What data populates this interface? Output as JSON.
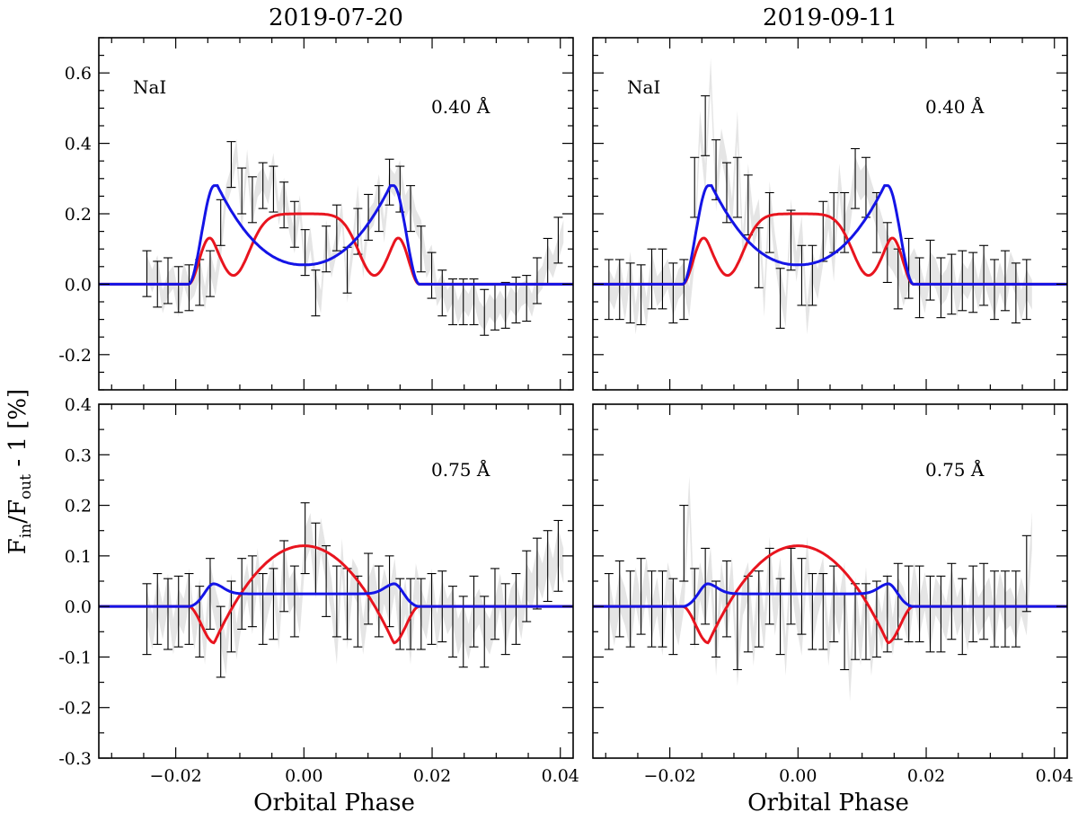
{
  "figure": {
    "ylabel_main": "F",
    "ylabel_sub_in": "in",
    "ylabel_mid": "/F",
    "ylabel_sub_out": "out",
    "ylabel_tail": " - 1 [%]",
    "xlabel": "Orbital Phase"
  },
  "chart_data": [
    {
      "type": "line",
      "panel": "top-left",
      "title": "2019-07-20",
      "annotations": [
        "NaI",
        "0.40 Å"
      ],
      "xlabel": "Orbital Phase",
      "ylabel": "Fin/Fout - 1 [%]",
      "xlim": [
        -0.032,
        0.042
      ],
      "ylim": [
        -0.3,
        0.7
      ],
      "xticks": [
        -0.02,
        0.0,
        0.02,
        0.04
      ],
      "xtick_labels": [
        "−0.02",
        "0.00",
        "0.02",
        "0.04"
      ],
      "yticks": [
        -0.2,
        0.0,
        0.2,
        0.4,
        0.6
      ],
      "ytick_labels": [
        "-0.2",
        "0.0",
        "0.2",
        "0.4",
        "0.6"
      ],
      "grid": false,
      "data_x_range": [
        -0.0245,
        0.0405
      ],
      "data_points": 80,
      "observed_values": [
        0.05,
        0.01,
        0.05,
        -0.05,
        0.0,
        0.02,
        -0.06,
        0.03,
        -0.02,
        0.0,
        0.05,
        -0.04,
        0.06,
        0.0,
        0.1,
        0.25,
        0.3,
        0.38,
        0.18,
        0.35,
        0.2,
        0.28,
        0.3,
        0.26,
        0.34,
        0.2,
        0.27,
        0.18,
        0.12,
        0.22,
        0.05,
        0.13,
        0.0,
        -0.05,
        0.15,
        0.05,
        0.12,
        0.2,
        -0.02,
        0.1,
        0.25,
        0.05,
        0.18,
        0.2,
        0.28,
        0.15,
        0.3,
        0.28,
        0.32,
        0.22,
        0.25,
        0.18,
        0.15,
        0.05,
        0.08,
        -0.03,
        0.0,
        -0.05,
        -0.02,
        -0.08,
        -0.04,
        -0.06,
        -0.02,
        -0.08,
        -0.1,
        -0.06,
        -0.08,
        -0.05,
        -0.08,
        -0.04,
        -0.06,
        -0.03,
        -0.02,
        -0.06,
        0.0,
        0.02,
        0.08,
        0.05,
        0.1,
        0.15
      ],
      "error": 0.065,
      "series": [
        {
          "name": "model-red",
          "color": "#e8141e",
          "shape": "flat",
          "t0": 0.018,
          "amplitude": 0.2,
          "shoulder": 0.025
        },
        {
          "name": "model-blue",
          "color": "#1414e6",
          "shape": "dip",
          "t0": 0.018,
          "amplitude": 0.28,
          "center": 0.055
        }
      ]
    },
    {
      "type": "line",
      "panel": "top-right",
      "title": "2019-09-11",
      "annotations": [
        "NaI",
        "0.40 Å"
      ],
      "xlabel": "Orbital Phase",
      "ylabel": "Fin/Fout - 1 [%]",
      "xlim": [
        -0.032,
        0.042
      ],
      "ylim": [
        -0.3,
        0.7
      ],
      "xticks": [
        -0.02,
        0.0,
        0.02,
        0.04
      ],
      "xtick_labels": [
        "−0.02",
        "0.00",
        "0.02",
        "0.04"
      ],
      "yticks": [
        -0.2,
        0.0,
        0.2,
        0.4,
        0.6
      ],
      "ytick_labels": [
        "",
        "",
        "",
        "",
        ""
      ],
      "grid": false,
      "data_x_range": [
        -0.0295,
        0.0365
      ],
      "data_points": 80,
      "observed_values": [
        0.0,
        -0.03,
        0.03,
        -0.06,
        0.05,
        -0.1,
        0.02,
        -0.08,
        0.05,
        -0.02,
        0.0,
        0.03,
        -0.05,
        0.0,
        0.02,
        -0.05,
        0.1,
        0.45,
        0.3,
        0.6,
        0.25,
        0.4,
        0.32,
        0.2,
        0.45,
        0.1,
        0.3,
        0.15,
        0.2,
        -0.05,
        0.25,
        0.1,
        0.0,
        -0.08,
        0.2,
        0.05,
        0.15,
        -0.1,
        0.05,
        0.0,
        0.1,
        0.2,
        0.05,
        0.3,
        0.15,
        0.2,
        0.32,
        0.28,
        0.3,
        0.25,
        0.2,
        0.15,
        0.1,
        0.08,
        0.05,
        -0.02,
        0.03,
        0.06,
        0.02,
        -0.04,
        0.05,
        0.03,
        -0.02,
        0.0,
        0.05,
        -0.05,
        0.02,
        0.0,
        0.04,
        -0.03,
        0.05,
        0.0,
        -0.05,
        0.02,
        -0.03,
        0.05,
        0.01,
        -0.06,
        0.0,
        -0.03
      ],
      "error": 0.085,
      "series": [
        {
          "name": "model-red",
          "color": "#e8141e",
          "shape": "flat",
          "t0": 0.018,
          "amplitude": 0.2,
          "shoulder": 0.025
        },
        {
          "name": "model-blue",
          "color": "#1414e6",
          "shape": "dip",
          "t0": 0.018,
          "amplitude": 0.28,
          "center": 0.055
        }
      ]
    },
    {
      "type": "line",
      "panel": "bottom-left",
      "title": "",
      "annotations": [
        "0.75 Å"
      ],
      "xlabel": "Orbital Phase",
      "ylabel": "Fin/Fout - 1 [%]",
      "xlim": [
        -0.032,
        0.042
      ],
      "ylim": [
        -0.3,
        0.4
      ],
      "xticks": [
        -0.02,
        0.0,
        0.02,
        0.04
      ],
      "xtick_labels": [
        "−0.02",
        "0.00",
        "0.02",
        "0.04"
      ],
      "yticks": [
        -0.3,
        -0.2,
        -0.1,
        0.0,
        0.1,
        0.2,
        0.3,
        0.4
      ],
      "ytick_labels": [
        "-0.3",
        "-0.2",
        "-0.1",
        "0.0",
        "0.1",
        "0.2",
        "0.3",
        "0.4"
      ],
      "grid": false,
      "data_x_range": [
        -0.0245,
        0.0405
      ],
      "data_points": 80,
      "observed_values": [
        0.0,
        -0.05,
        0.02,
        -0.03,
        0.03,
        -0.06,
        0.0,
        -0.02,
        0.04,
        -0.05,
        0.02,
        -0.08,
        0.05,
        0.0,
        -0.04,
        -0.1,
        0.03,
        -0.07,
        0.0,
        0.05,
        -0.02,
        0.08,
        -0.03,
        0.02,
        0.06,
        -0.05,
        0.1,
        0.02,
        0.04,
        -0.02,
        0.12,
        0.15,
        0.05,
        0.14,
        0.08,
        0.02,
        -0.08,
        0.1,
        -0.05,
        0.06,
        0.04,
        -0.06,
        0.02,
        0.05,
        -0.02,
        0.04,
        0.0,
        0.06,
        -0.05,
        0.02,
        -0.08,
        0.05,
        0.0,
        -0.03,
        0.04,
        -0.05,
        0.02,
        -0.02,
        0.0,
        -0.06,
        -0.03,
        -0.07,
        -0.02,
        0.0,
        -0.04,
        -0.06,
        -0.02,
        0.03,
        -0.05,
        0.0,
        0.02,
        -0.03,
        0.05,
        0.03,
        0.08,
        0.05,
        0.1,
        0.06,
        0.12,
        0.08
      ],
      "error": 0.07,
      "series": [
        {
          "name": "model-red",
          "color": "#e8141e",
          "shape": "bump",
          "t0": 0.018,
          "amplitude": 0.12,
          "edge": -0.072,
          "edge_pos": 0.014
        },
        {
          "name": "model-blue",
          "color": "#1414e6",
          "shape": "flatshoulder",
          "t0": 0.018,
          "amplitude": 0.025,
          "shoulder": 0.045
        }
      ]
    },
    {
      "type": "line",
      "panel": "bottom-right",
      "title": "",
      "annotations": [
        "0.75 Å"
      ],
      "xlabel": "Orbital Phase",
      "ylabel": "Fin/Fout - 1 [%]",
      "xlim": [
        -0.032,
        0.042
      ],
      "ylim": [
        -0.3,
        0.4
      ],
      "xticks": [
        -0.02,
        0.0,
        0.02,
        0.04
      ],
      "xtick_labels": [
        "−0.02",
        "0.00",
        "0.02",
        "0.04"
      ],
      "yticks": [
        -0.3,
        -0.2,
        -0.1,
        0.0,
        0.1,
        0.2,
        0.3,
        0.4
      ],
      "ytick_labels": [
        "",
        "",
        "",
        "",
        "",
        "",
        "",
        ""
      ],
      "grid": false,
      "data_x_range": [
        -0.0295,
        0.0365
      ],
      "data_points": 80,
      "observed_values": [
        0.02,
        -0.04,
        0.03,
        0.0,
        -0.05,
        0.04,
        -0.02,
        0.06,
        -0.03,
        0.02,
        -0.06,
        0.05,
        0.0,
        -0.04,
        0.03,
        0.22,
        -0.05,
        0.05,
        0.0,
        0.08,
        -0.1,
        0.05,
        -0.03,
        0.06,
        -0.12,
        0.02,
        0.05,
        -0.08,
        0.04,
        -0.05,
        0.1,
        -0.02,
        0.06,
        -0.1,
        0.08,
        0.0,
        -0.06,
        0.1,
        -0.04,
        0.02,
        0.06,
        -0.08,
        0.03,
        -0.02,
        0.05,
        -0.15,
        0.02,
        -0.08,
        0.04,
        -0.1,
        0.0,
        -0.05,
        0.03,
        -0.06,
        0.02,
        0.0,
        -0.04,
        0.05,
        -0.02,
        0.03,
        -0.05,
        0.02,
        0.0,
        -0.03,
        0.04,
        -0.02,
        0.01,
        -0.05,
        0.03,
        -0.02,
        0.0,
        0.02,
        -0.04,
        0.03,
        -0.01,
        0.0,
        -0.03,
        0.02,
        -0.02,
        0.15
      ],
      "error": 0.075,
      "series": [
        {
          "name": "model-red",
          "color": "#e8141e",
          "shape": "bump",
          "t0": 0.018,
          "amplitude": 0.12,
          "edge": -0.072,
          "edge_pos": 0.014
        },
        {
          "name": "model-blue",
          "color": "#1414e6",
          "shape": "flatshoulder",
          "t0": 0.018,
          "amplitude": 0.025,
          "shoulder": 0.045
        }
      ]
    }
  ]
}
